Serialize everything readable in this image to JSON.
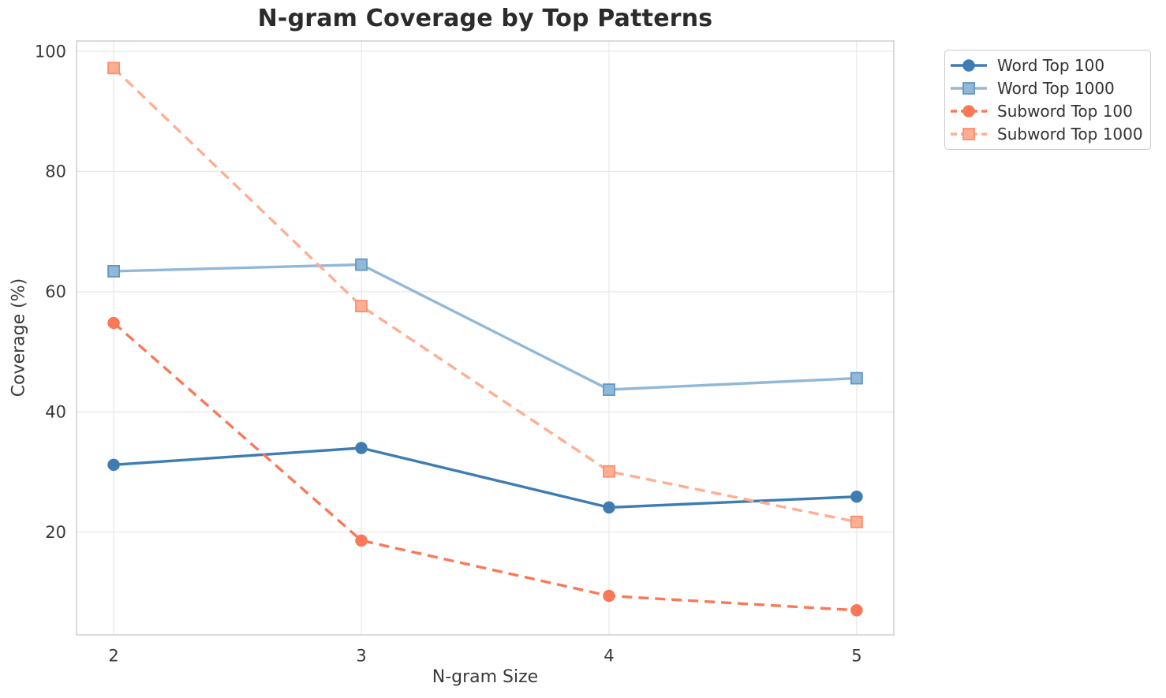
{
  "chart_data": {
    "type": "line",
    "title": "N-gram Coverage by Top Patterns",
    "xlabel": "N-gram Size",
    "ylabel": "Coverage (%)",
    "x": [
      2,
      3,
      4,
      5
    ],
    "xtick_labels": [
      "2",
      "3",
      "4",
      "5"
    ],
    "yticks": [
      20,
      40,
      60,
      80,
      100
    ],
    "ytick_labels": [
      "20",
      "40",
      "60",
      "80",
      "100"
    ],
    "xlim": [
      1.85,
      5.15
    ],
    "ylim": [
      2.9,
      101.7
    ],
    "grid": true,
    "legend_position": "outside upper right",
    "series": [
      {
        "name": "Word Top 100",
        "values": [
          31.2,
          34.0,
          24.1,
          25.9
        ],
        "color": "#3E7CB2",
        "marker_edge": "#3E7CB2",
        "linestyle": "solid",
        "marker": "circle"
      },
      {
        "name": "Word Top 1000",
        "values": [
          63.4,
          64.5,
          43.7,
          45.6
        ],
        "color": "#92B8D8",
        "marker_edge": "#6297C5",
        "linestyle": "solid",
        "marker": "square"
      },
      {
        "name": "Subword Top 100",
        "values": [
          54.8,
          18.6,
          9.4,
          7.0
        ],
        "color": "#FA7857",
        "marker_edge": "#FA7857",
        "linestyle": "dashed",
        "marker": "circle"
      },
      {
        "name": "Subword Top 1000",
        "values": [
          97.2,
          57.6,
          30.1,
          21.7
        ],
        "color": "#FFAD93",
        "marker_edge": "#FB8E6D",
        "linestyle": "dashed",
        "marker": "square"
      }
    ],
    "style": {
      "background": "#FFFFFF",
      "grid_color": "#E7E7E7",
      "spine_color": "#CCCCCC",
      "tick_text_color": "#3A3A3A",
      "title_color": "#2B2B2B"
    }
  }
}
